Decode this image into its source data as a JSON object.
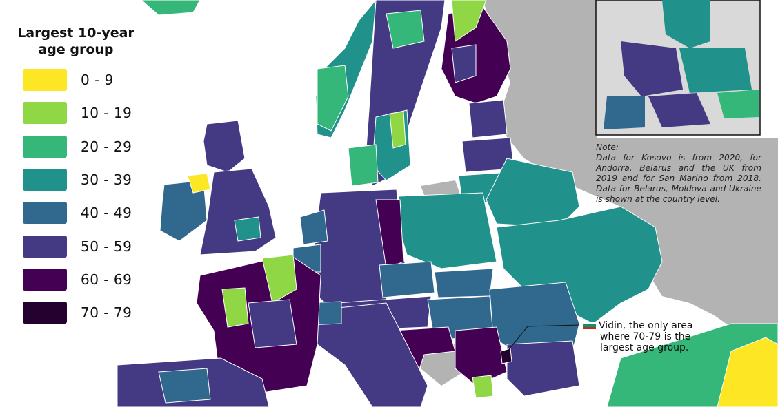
{
  "legend": {
    "title_line1": "Largest 10-year",
    "title_line2": "age group",
    "items": [
      {
        "label": "0 - 9",
        "color": "#fde725"
      },
      {
        "label": "10 - 19",
        "color": "#8fd744"
      },
      {
        "label": "20 - 29",
        "color": "#35b779"
      },
      {
        "label": "30 - 39",
        "color": "#21918c"
      },
      {
        "label": "40 - 49",
        "color": "#31688e"
      },
      {
        "label": "50 - 59",
        "color": "#443a83"
      },
      {
        "label": "60 - 69",
        "color": "#440154"
      },
      {
        "label": "70 - 79",
        "color": "#24012e"
      }
    ]
  },
  "note": {
    "heading": "Note:",
    "body": "Data for Kosovo is from 2020, for Andorra, Belarus and the UK from 2019 and for San Marino from 2018. Data for Belarus, Moldova and Ukraine is shown at the country level."
  },
  "callout": {
    "line1": "Vidin, the only area",
    "line2": "where 70-79 is the",
    "line3": "largest age group."
  },
  "colors": {
    "sea": "#ffffff",
    "no_data": "#b3b3b3",
    "border": "#ffffff"
  }
}
